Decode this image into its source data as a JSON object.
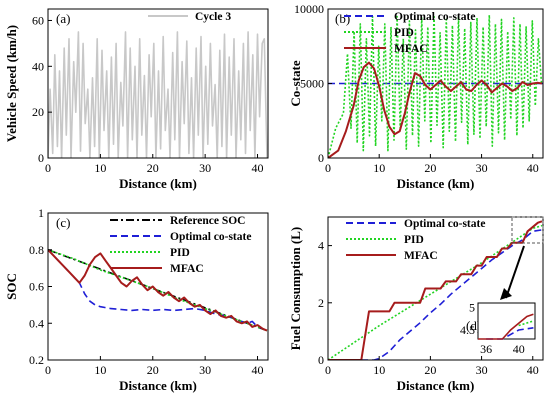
{
  "chart_data": [
    {
      "panel": "(a)",
      "type": "line",
      "title": "",
      "xlabel": "Distance (km)",
      "ylabel": "Vehicle Speed (km/h)",
      "xlim": [
        0,
        42
      ],
      "ylim": [
        0,
        65
      ],
      "xticks": [
        "0",
        "10",
        "20",
        "30",
        "40"
      ],
      "yticks": [
        "0",
        "20",
        "40",
        "60"
      ],
      "legend": {
        "placement": "top-right",
        "entries": [
          "Cycle 3"
        ]
      },
      "series": [
        {
          "name": "Cycle 3",
          "color": "#c8c8c8",
          "x": [
            0,
            0.4,
            0.9,
            1.3,
            1.8,
            2.2,
            2.6,
            3.1,
            3.5,
            4.0,
            4.4,
            4.9,
            5.3,
            5.8,
            6.2,
            6.7,
            7.1,
            7.6,
            8.0,
            8.5,
            8.9,
            9.4,
            9.8,
            10.3,
            10.7,
            11.2,
            11.6,
            12.1,
            12.5,
            13.0,
            13.4,
            13.9,
            14.3,
            14.8,
            15.2,
            15.7,
            16.1,
            16.6,
            17.0,
            17.5,
            17.9,
            18.4,
            18.8,
            19.3,
            19.7,
            20.2,
            20.6,
            21.1,
            21.5,
            22.0,
            22.4,
            22.9,
            23.3,
            23.8,
            24.2,
            24.7,
            25.1,
            25.6,
            26.0,
            26.5,
            26.9,
            27.4,
            27.8,
            28.3,
            28.7,
            29.2,
            29.6,
            30.1,
            30.5,
            31.0,
            31.4,
            31.9,
            32.3,
            32.8,
            33.2,
            33.7,
            34.1,
            34.6,
            35.0,
            35.5,
            35.9,
            36.4,
            36.8,
            37.3,
            37.7,
            38.2,
            38.6,
            39.1,
            39.5,
            40.0,
            40.4,
            40.9,
            41.3,
            41.8
          ],
          "values": [
            0,
            30,
            2,
            45,
            5,
            38,
            0,
            48,
            10,
            52,
            0,
            42,
            20,
            55,
            3,
            50,
            15,
            30,
            0,
            35,
            5,
            52,
            0,
            47,
            12,
            38,
            0,
            44,
            6,
            50,
            0,
            33,
            14,
            55,
            0,
            48,
            8,
            40,
            0,
            52,
            10,
            36,
            0,
            45,
            18,
            50,
            0,
            38,
            4,
            53,
            12,
            30,
            0,
            46,
            8,
            55,
            0,
            42,
            15,
            51,
            2,
            35,
            0,
            48,
            10,
            53,
            0,
            40,
            6,
            50,
            14,
            32,
            0,
            47,
            5,
            54,
            0,
            44,
            10,
            52,
            0,
            38,
            8,
            50,
            2,
            55,
            12,
            45,
            0,
            54,
            18,
            50,
            52,
            0
          ]
        }
      ]
    },
    {
      "panel": "(b)",
      "type": "line",
      "title": "",
      "xlabel": "Distance (km)",
      "ylabel": "Co-state",
      "xlim": [
        0,
        42
      ],
      "ylim": [
        0,
        10000
      ],
      "xticks": [
        "0",
        "10",
        "20",
        "30",
        "40"
      ],
      "yticks": [
        "0",
        "5000",
        "10000"
      ],
      "legend": {
        "placement": "top-right",
        "entries": [
          "Optimal co-state",
          "PID",
          "MFAC"
        ]
      },
      "series": [
        {
          "name": "Optimal co-state",
          "color": "#1f1fd6",
          "style": "dashed",
          "x": [
            0,
            42
          ],
          "values": [
            5000,
            5000
          ]
        },
        {
          "name": "PID",
          "color": "#22d422",
          "style": "dotted",
          "x": [
            0,
            1.5,
            3,
            3.8,
            4.5,
            5.1,
            5.7,
            6.3,
            6.9,
            7.5,
            8.1,
            8.7,
            9.3,
            9.9,
            10.5,
            11.1,
            11.7,
            12.3,
            12.9,
            13.5,
            14.1,
            14.7,
            15.3,
            15.9,
            16.5,
            17.1,
            17.7,
            18.3,
            18.9,
            19.5,
            20.1,
            20.7,
            21.3,
            21.9,
            22.5,
            23.1,
            23.7,
            24.3,
            24.9,
            25.5,
            26.1,
            26.7,
            27.3,
            27.9,
            28.5,
            29.1,
            29.7,
            30.3,
            30.9,
            31.5,
            32.1,
            32.7,
            33.3,
            33.9,
            34.5,
            35.1,
            35.7,
            36.3,
            36.9,
            37.5,
            38.1,
            38.7,
            39.3,
            39.9,
            40.5,
            41.1,
            41.7
          ],
          "values": [
            0,
            2000,
            3000,
            7000,
            2000,
            8500,
            1000,
            9000,
            500,
            8000,
            1500,
            9500,
            800,
            7500,
            2500,
            9000,
            500,
            8800,
            1200,
            9500,
            2000,
            8000,
            600,
            9200,
            1500,
            8600,
            800,
            9400,
            2500,
            8800,
            1000,
            9600,
            2200,
            8400,
            700,
            9300,
            1800,
            8900,
            1100,
            9500,
            2400,
            8700,
            900,
            9100,
            1600,
            9400,
            1300,
            8800,
            2100,
            9600,
            800,
            9000,
            1700,
            9300,
            1200,
            8500,
            2600,
            9400,
            1500,
            9000,
            2000,
            8800,
            2500,
            9200,
            3500,
            8000,
            5000
          ]
        },
        {
          "name": "MFAC",
          "color": "#a61c1c",
          "style": "solid",
          "x": [
            0,
            2,
            3.5,
            5,
            6,
            7,
            8,
            9,
            10,
            11,
            12,
            13,
            14,
            15,
            16,
            17,
            18,
            19,
            20,
            21,
            22,
            23,
            24,
            25,
            26,
            27,
            28,
            29,
            30,
            31,
            32,
            33,
            34,
            35,
            36,
            37,
            38,
            39,
            40,
            41,
            41.8
          ],
          "values": [
            0,
            500,
            1800,
            3500,
            5200,
            6100,
            6400,
            6000,
            4800,
            3200,
            2100,
            1600,
            1800,
            3000,
            4500,
            5700,
            5500,
            4900,
            4600,
            4900,
            5200,
            4800,
            4500,
            4800,
            5100,
            4600,
            4500,
            4900,
            5200,
            4900,
            4400,
            4700,
            5000,
            4800,
            4500,
            4700,
            5100,
            4900,
            5000,
            5050,
            5000
          ]
        }
      ]
    },
    {
      "panel": "(c)",
      "type": "line",
      "title": "",
      "xlabel": "Distance (km)",
      "ylabel": "SOC",
      "xlim": [
        0,
        42
      ],
      "ylim": [
        0.2,
        1
      ],
      "xticks": [
        "0",
        "10",
        "20",
        "30",
        "40"
      ],
      "yticks": [
        "0.2",
        "0.4",
        "0.6",
        "0.8",
        "1"
      ],
      "legend": {
        "placement": "top-right",
        "entries": [
          "Reference SOC",
          "Optimal co-state",
          "PID",
          "MFAC"
        ]
      },
      "series": [
        {
          "name": "Reference SOC",
          "color": "#000000",
          "style": "dashdot",
          "x": [
            0,
            41.8
          ],
          "values": [
            0.8,
            0.36
          ]
        },
        {
          "name": "Optimal co-state",
          "color": "#1f1fd6",
          "style": "dashed",
          "x": [
            0,
            2,
            4,
            6,
            7,
            8,
            9,
            10,
            12,
            14,
            16,
            18,
            20,
            22,
            24,
            26,
            28,
            30,
            32,
            34,
            36,
            38,
            39,
            40,
            41,
            41.8
          ],
          "values": [
            0.8,
            0.74,
            0.68,
            0.62,
            0.56,
            0.52,
            0.5,
            0.49,
            0.48,
            0.475,
            0.47,
            0.475,
            0.47,
            0.475,
            0.47,
            0.475,
            0.48,
            0.47,
            0.45,
            0.44,
            0.42,
            0.4,
            0.41,
            0.38,
            0.37,
            0.36
          ]
        },
        {
          "name": "PID",
          "color": "#22d422",
          "style": "dotted",
          "x": [
            0,
            5,
            10,
            15,
            20,
            25,
            30,
            35,
            40,
            41.8
          ],
          "values": [
            0.8,
            0.75,
            0.69,
            0.64,
            0.59,
            0.53,
            0.48,
            0.43,
            0.38,
            0.36
          ]
        },
        {
          "name": "MFAC",
          "color": "#a61c1c",
          "style": "solid",
          "x": [
            0,
            2,
            4,
            6,
            7,
            8,
            9,
            10,
            11,
            12,
            13,
            14,
            15,
            16,
            17,
            18,
            19,
            20,
            21,
            22,
            23,
            24,
            25,
            26,
            27,
            28,
            29,
            30,
            31,
            32,
            33,
            34,
            35,
            36,
            37,
            38,
            39,
            40,
            41,
            41.8
          ],
          "values": [
            0.8,
            0.74,
            0.68,
            0.62,
            0.66,
            0.72,
            0.76,
            0.78,
            0.74,
            0.7,
            0.66,
            0.62,
            0.6,
            0.63,
            0.65,
            0.61,
            0.58,
            0.6,
            0.57,
            0.55,
            0.57,
            0.54,
            0.52,
            0.54,
            0.51,
            0.49,
            0.5,
            0.47,
            0.45,
            0.47,
            0.44,
            0.43,
            0.44,
            0.41,
            0.4,
            0.41,
            0.38,
            0.39,
            0.37,
            0.36
          ]
        }
      ]
    },
    {
      "panel": "(d)",
      "type": "line",
      "title": "",
      "xlabel": "Distance (km)",
      "ylabel": "Fuel Consumption (L)",
      "xlim": [
        0,
        42
      ],
      "ylim": [
        0,
        5
      ],
      "xticks": [
        "0",
        "10",
        "20",
        "30",
        "40"
      ],
      "yticks": [
        "0",
        "2",
        "4"
      ],
      "legend": {
        "placement": "top-left",
        "entries": [
          "Optimal co-state",
          "PID",
          "MFAC"
        ]
      },
      "inset": {
        "xticks": [
          "36",
          "40"
        ],
        "yticks": [
          "4.5",
          "5"
        ]
      },
      "series": [
        {
          "name": "Optimal co-state",
          "color": "#1f1fd6",
          "style": "dashed",
          "x": [
            0,
            9,
            10,
            12,
            14,
            16,
            18,
            20,
            22,
            24,
            26,
            28,
            30,
            32,
            34,
            36,
            38,
            40,
            41.8
          ],
          "values": [
            0,
            0,
            0.05,
            0.3,
            0.7,
            1.0,
            1.3,
            1.65,
            1.95,
            2.3,
            2.6,
            2.9,
            3.2,
            3.5,
            3.75,
            4.0,
            4.2,
            4.5,
            4.55
          ]
        },
        {
          "name": "PID",
          "color": "#22d422",
          "style": "dotted",
          "x": [
            0,
            10,
            20,
            30,
            40,
            41.8
          ],
          "values": [
            0,
            1.2,
            2.3,
            3.4,
            4.6,
            4.7
          ]
        },
        {
          "name": "MFAC",
          "color": "#a61c1c",
          "style": "solid",
          "x": [
            0,
            6.5,
            8,
            12,
            13,
            18,
            19,
            22,
            23,
            25,
            26,
            28,
            29,
            30,
            31,
            33,
            34,
            35,
            36,
            38,
            39,
            41,
            41.8
          ],
          "values": [
            0,
            0,
            1.7,
            1.7,
            2.0,
            2.0,
            2.5,
            2.5,
            2.75,
            2.75,
            3.0,
            3.0,
            3.3,
            3.3,
            3.6,
            3.6,
            3.9,
            3.9,
            4.1,
            4.1,
            4.5,
            4.8,
            4.85
          ]
        }
      ]
    }
  ]
}
